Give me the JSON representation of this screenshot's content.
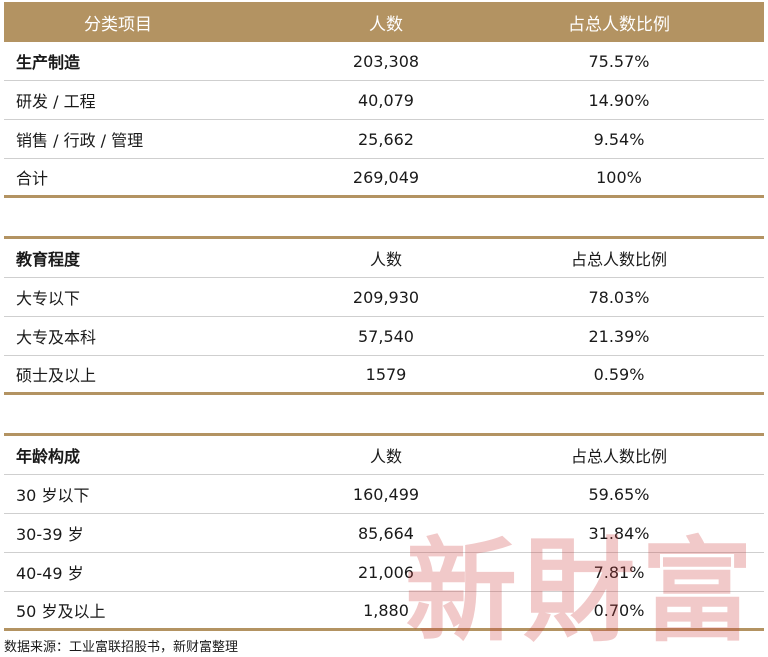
{
  "table1": {
    "header": {
      "c1": "分类项目",
      "c2": "人数",
      "c3": "占总人数比例"
    },
    "rows": [
      {
        "c1": "生产制造",
        "c2": "203,308",
        "c3": "75.57%"
      },
      {
        "c1": "研发 / 工程",
        "c2": "40,079",
        "c3": "14.90%"
      },
      {
        "c1": "销售 / 行政 / 管理",
        "c2": "25,662",
        "c3": "9.54%"
      },
      {
        "c1": "合计",
        "c2": "269,049",
        "c3": "100%"
      }
    ]
  },
  "table2": {
    "header": {
      "c1": "教育程度",
      "c2": "人数",
      "c3": "占总人数比例"
    },
    "rows": [
      {
        "c1": "大专以下",
        "c2": "209,930",
        "c3": "78.03%"
      },
      {
        "c1": "大专及本科",
        "c2": "57,540",
        "c3": "21.39%"
      },
      {
        "c1": "硕士及以上",
        "c2": "1579",
        "c3": "0.59%"
      }
    ]
  },
  "table3": {
    "header": {
      "c1": "年龄构成",
      "c2": "人数",
      "c3": "占总人数比例"
    },
    "rows": [
      {
        "c1": "30 岁以下",
        "c2": "160,499",
        "c3": "59.65%"
      },
      {
        "c1": "30-39 岁",
        "c2": "85,664",
        "c3": "31.84%"
      },
      {
        "c1": "40-49 岁",
        "c2": "21,006",
        "c3": "7.81%"
      },
      {
        "c1": "50 岁及以上",
        "c2": "1,880",
        "c3": "0.70%"
      }
    ]
  },
  "source": "数据来源：工业富联招股书，新财富整理",
  "watermark": "新財富",
  "colors": {
    "accent": "#b39362",
    "watermark": "#ce3c3c"
  }
}
